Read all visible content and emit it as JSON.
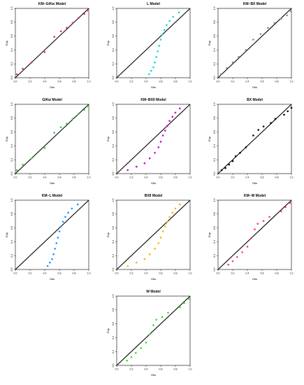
{
  "chart_data": [
    {
      "type": "scatter",
      "title": "KM−GiKw Model",
      "xlabel": "Obs",
      "ylabel": "Exp",
      "xlim": [
        0,
        1
      ],
      "ylim": [
        0,
        1
      ],
      "xticks": [
        "0.0",
        "0.2",
        "0.4",
        "0.6",
        "0.8",
        "1.0"
      ],
      "yticks": [
        "0.0",
        "0.2",
        "0.4",
        "0.6",
        "0.8",
        "1.0"
      ],
      "reference_line": "y = x",
      "grid": false,
      "color": "#E0218A",
      "series": [
        {
          "x": [
            0.02,
            0.1,
            0.22,
            0.4,
            0.53,
            0.62,
            0.7,
            0.78,
            0.86,
            0.94,
            0.98
          ],
          "y": [
            0.05,
            0.13,
            0.22,
            0.37,
            0.59,
            0.67,
            0.72,
            0.79,
            0.86,
            0.92,
            0.97
          ]
        }
      ]
    },
    {
      "type": "scatter",
      "title": "L Model",
      "xlabel": "Obs",
      "ylabel": "Exp",
      "xlim": [
        0,
        1
      ],
      "ylim": [
        0,
        1
      ],
      "xticks": [
        "0.0",
        "0.2",
        "0.4",
        "0.6",
        "0.8",
        "1.0"
      ],
      "yticks": [
        "0.0",
        "0.2",
        "0.4",
        "0.6",
        "0.8",
        "1.0"
      ],
      "reference_line": "y = x",
      "grid": false,
      "color": "#19D3D3",
      "series": [
        {
          "x": [
            0.44,
            0.47,
            0.5,
            0.52,
            0.54,
            0.56,
            0.58,
            0.6,
            0.62,
            0.65,
            0.68,
            0.72,
            0.77,
            0.85
          ],
          "y": [
            0.05,
            0.1,
            0.15,
            0.22,
            0.3,
            0.38,
            0.46,
            0.55,
            0.62,
            0.69,
            0.76,
            0.82,
            0.88,
            0.94
          ]
        }
      ]
    },
    {
      "type": "scatter",
      "title": "KM−BX Model",
      "xlabel": "Obs",
      "ylabel": "Exp",
      "xlim": [
        0,
        1
      ],
      "ylim": [
        0,
        1
      ],
      "xticks": [
        "0.0",
        "0.2",
        "0.4",
        "0.6",
        "0.8",
        "1.0"
      ],
      "yticks": [
        "0.0",
        "0.2",
        "0.4",
        "0.6",
        "0.8",
        "1.0"
      ],
      "reference_line": "y = x",
      "grid": false,
      "color": "#8C8C8C",
      "series": [
        {
          "x": [
            0.04,
            0.12,
            0.2,
            0.28,
            0.38,
            0.48,
            0.58,
            0.68,
            0.77,
            0.86,
            0.94,
            0.99
          ],
          "y": [
            0.05,
            0.14,
            0.22,
            0.3,
            0.4,
            0.55,
            0.63,
            0.72,
            0.79,
            0.85,
            0.9,
            0.96
          ]
        }
      ]
    },
    {
      "type": "scatter",
      "title": "GiKw Model",
      "xlabel": "Obs",
      "ylabel": "Exp",
      "xlim": [
        0,
        1
      ],
      "ylim": [
        0,
        1
      ],
      "xticks": [
        "0.0",
        "0.2",
        "0.4",
        "0.6",
        "0.8",
        "1.0"
      ],
      "yticks": [
        "0.0",
        "0.2",
        "0.4",
        "0.6",
        "0.8",
        "1.0"
      ],
      "reference_line": "y = x",
      "grid": false,
      "color": "#33CC33",
      "series": [
        {
          "x": [
            0.02,
            0.1,
            0.22,
            0.4,
            0.53,
            0.62,
            0.7,
            0.78,
            0.86,
            0.94,
            0.98
          ],
          "y": [
            0.05,
            0.13,
            0.22,
            0.37,
            0.59,
            0.67,
            0.72,
            0.79,
            0.86,
            0.92,
            0.97
          ]
        }
      ]
    },
    {
      "type": "scatter",
      "title": "KM−BXII Model",
      "xlabel": "Obs",
      "ylabel": "Exp",
      "xlim": [
        0,
        1
      ],
      "ylim": [
        0,
        1
      ],
      "xticks": [
        "0.0",
        "0.2",
        "0.4",
        "0.6",
        "0.8",
        "1.0"
      ],
      "yticks": [
        "0.0",
        "0.2",
        "0.4",
        "0.6",
        "0.8",
        "1.0"
      ],
      "reference_line": "y = x",
      "grid": false,
      "color": "#CC00CC",
      "series": [
        {
          "x": [
            0.15,
            0.27,
            0.38,
            0.45,
            0.52,
            0.57,
            0.6,
            0.63,
            0.66,
            0.69,
            0.72,
            0.76,
            0.8,
            0.86
          ],
          "y": [
            0.05,
            0.1,
            0.15,
            0.22,
            0.3,
            0.38,
            0.46,
            0.55,
            0.62,
            0.69,
            0.76,
            0.82,
            0.88,
            0.94
          ]
        }
      ]
    },
    {
      "type": "scatter",
      "title": "BX Model",
      "xlabel": "Obs",
      "ylabel": "Exp",
      "xlim": [
        0,
        1
      ],
      "ylim": [
        0,
        1
      ],
      "xticks": [
        "0.0",
        "0.2",
        "0.4",
        "0.6",
        "0.8",
        "1.0"
      ],
      "yticks": [
        "0.0",
        "0.2",
        "0.4",
        "0.6",
        "0.8",
        "1.0"
      ],
      "reference_line": "y = x",
      "grid": false,
      "color": "#000000",
      "series": [
        {
          "x": [
            0.05,
            0.1,
            0.15,
            0.2,
            0.24,
            0.3,
            0.38,
            0.48,
            0.55,
            0.62,
            0.72,
            0.78,
            0.9,
            0.95,
            1.0
          ],
          "y": [
            0.05,
            0.08,
            0.13,
            0.18,
            0.25,
            0.3,
            0.38,
            0.55,
            0.63,
            0.68,
            0.73,
            0.79,
            0.85,
            0.9,
            0.95
          ]
        }
      ]
    },
    {
      "type": "scatter",
      "title": "KM−L Model",
      "xlabel": "Obs",
      "ylabel": "Exp",
      "xlim": [
        0,
        1
      ],
      "ylim": [
        0,
        1
      ],
      "xticks": [
        "0.0",
        "0.2",
        "0.4",
        "0.6",
        "0.8",
        "1.0"
      ],
      "yticks": [
        "0.0",
        "0.2",
        "0.4",
        "0.6",
        "0.8",
        "1.0"
      ],
      "reference_line": "y = x",
      "grid": false,
      "color": "#1E90FF",
      "series": [
        {
          "x": [
            0.44,
            0.47,
            0.5,
            0.52,
            0.54,
            0.56,
            0.58,
            0.6,
            0.62,
            0.65,
            0.68,
            0.72,
            0.77,
            0.85
          ],
          "y": [
            0.05,
            0.1,
            0.15,
            0.22,
            0.3,
            0.38,
            0.46,
            0.55,
            0.62,
            0.69,
            0.76,
            0.82,
            0.88,
            0.94
          ]
        }
      ]
    },
    {
      "type": "scatter",
      "title": "BXII Model",
      "xlabel": "Obs",
      "ylabel": "Exp",
      "xlim": [
        0,
        1
      ],
      "ylim": [
        0,
        1
      ],
      "xticks": [
        "0.0",
        "0.2",
        "0.4",
        "0.6",
        "0.8",
        "1.0"
      ],
      "yticks": [
        "0.0",
        "0.2",
        "0.4",
        "0.6",
        "0.8",
        "1.0"
      ],
      "reference_line": "y = x",
      "grid": false,
      "color": "#FFB000",
      "series": [
        {
          "x": [
            0.15,
            0.27,
            0.38,
            0.45,
            0.52,
            0.57,
            0.6,
            0.63,
            0.66,
            0.69,
            0.72,
            0.76,
            0.8,
            0.86
          ],
          "y": [
            0.05,
            0.1,
            0.15,
            0.22,
            0.3,
            0.38,
            0.46,
            0.55,
            0.62,
            0.69,
            0.76,
            0.82,
            0.88,
            0.94
          ]
        }
      ]
    },
    {
      "type": "scatter",
      "title": "KM−W Model",
      "xlabel": "Obs",
      "ylabel": "Exp",
      "xlim": [
        0,
        1
      ],
      "ylim": [
        0,
        1
      ],
      "xticks": [
        "0.0",
        "0.2",
        "0.4",
        "0.6",
        "0.8",
        "1.0"
      ],
      "yticks": [
        "0.0",
        "0.2",
        "0.4",
        "0.6",
        "0.8",
        "1.0"
      ],
      "reference_line": "y = x",
      "grid": false,
      "color": "#FF3399",
      "series": [
        {
          "x": [
            0.14,
            0.2,
            0.26,
            0.33,
            0.4,
            0.45,
            0.5,
            0.54,
            0.62,
            0.7,
            0.86,
            0.92,
            0.98
          ],
          "y": [
            0.07,
            0.12,
            0.18,
            0.25,
            0.33,
            0.45,
            0.58,
            0.66,
            0.7,
            0.76,
            0.84,
            0.9,
            0.96
          ]
        }
      ]
    },
    {
      "type": "scatter",
      "title": "W Model",
      "xlabel": "Obs",
      "ylabel": "Exp",
      "xlim": [
        0,
        1
      ],
      "ylim": [
        0,
        1
      ],
      "xticks": [
        "0.0",
        "0.2",
        "0.4",
        "0.6",
        "0.8",
        "1.0"
      ],
      "yticks": [
        "0.0",
        "0.2",
        "0.4",
        "0.6",
        "0.8",
        "1.0"
      ],
      "reference_line": "y = x",
      "grid": false,
      "color": "#33E02A",
      "series": [
        {
          "x": [
            0.14,
            0.2,
            0.26,
            0.33,
            0.4,
            0.45,
            0.5,
            0.54,
            0.62,
            0.7,
            0.86,
            0.92,
            0.98
          ],
          "y": [
            0.07,
            0.12,
            0.18,
            0.25,
            0.33,
            0.45,
            0.58,
            0.66,
            0.7,
            0.76,
            0.84,
            0.9,
            0.96
          ]
        }
      ]
    }
  ]
}
